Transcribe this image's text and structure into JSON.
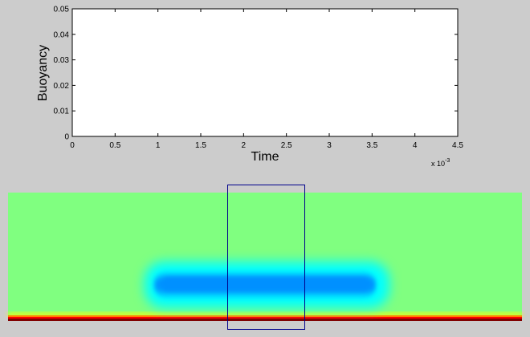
{
  "chart_data": [
    {
      "type": "line",
      "title": "",
      "xlabel": "Time",
      "ylabel": "Buoyancy",
      "xlim": [
        0,
        0.0045
      ],
      "ylim": [
        0,
        0.05
      ],
      "x_tick_labels": [
        "0",
        "0.5",
        "1",
        "1.5",
        "2",
        "2.5",
        "3",
        "3.5",
        "4",
        "4.5"
      ],
      "x_tick_values": [
        0,
        0.0005,
        0.001,
        0.0015,
        0.002,
        0.0025,
        0.003,
        0.0035,
        0.004,
        0.0045
      ],
      "x_exponent_base": "x 10",
      "x_exponent_power": "-3",
      "y_tick_labels": [
        "0",
        "0.01",
        "0.02",
        "0.03",
        "0.04",
        "0.05"
      ],
      "y_tick_values": [
        0,
        0.01,
        0.02,
        0.03,
        0.04,
        0.05
      ],
      "grid": false,
      "series": []
    },
    {
      "type": "heatmap",
      "colormap": "jet",
      "background_color": "#80ff80",
      "bottom_band_colors": [
        "#ffff00",
        "#ff0000",
        "#800000"
      ],
      "anomaly_color": "#0090ff",
      "selection_box_color": "#00008b"
    }
  ]
}
